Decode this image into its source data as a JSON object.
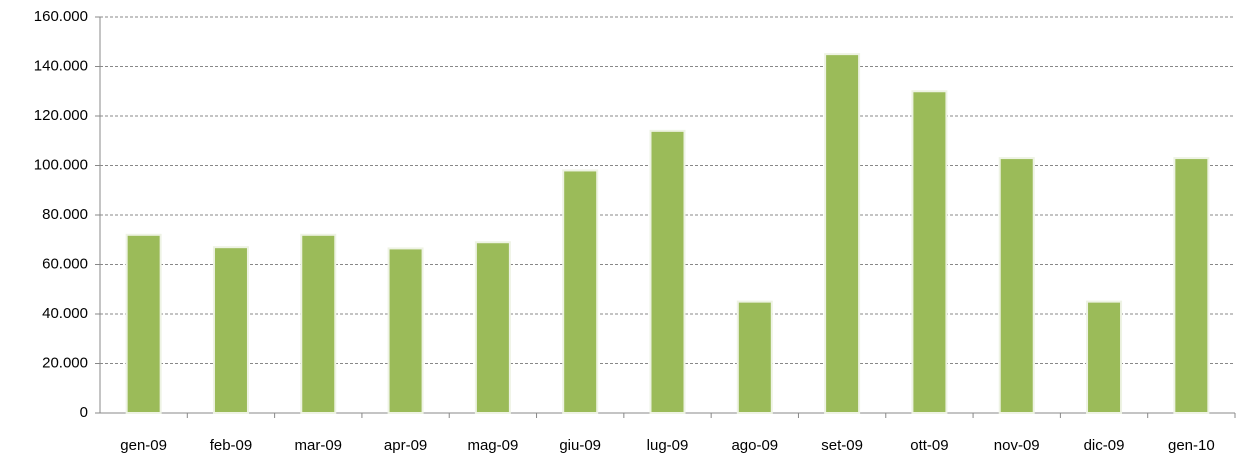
{
  "chart_data": {
    "type": "bar",
    "categories": [
      "gen-09",
      "feb-09",
      "mar-09",
      "apr-09",
      "mag-09",
      "giu-09",
      "lug-09",
      "ago-09",
      "set-09",
      "ott-09",
      "nov-09",
      "dic-09",
      "gen-10"
    ],
    "values": [
      72000,
      67000,
      72000,
      66500,
      69000,
      98000,
      114000,
      45000,
      145000,
      130000,
      103000,
      45000,
      103000
    ],
    "color": "#9bbb59",
    "ylim": [
      0,
      160000
    ],
    "yticks": [
      0,
      {
        "value": 20000,
        "label": "20.000"
      },
      {
        "value": 40000,
        "label": "40.000"
      },
      {
        "value": 60000,
        "label": "60.000"
      },
      {
        "value": 80000,
        "label": "80.000"
      },
      {
        "value": 100000,
        "label": "100.000"
      },
      {
        "value": 120000,
        "label": "120.000"
      },
      {
        "value": 140000,
        "label": "140.000"
      },
      {
        "value": 160000,
        "label": "160.000"
      }
    ],
    "grid": true
  }
}
